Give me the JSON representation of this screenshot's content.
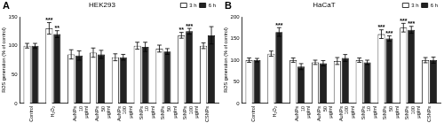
{
  "chart_data": [
    {
      "panel": "A",
      "type": "bar",
      "title": "HEK293",
      "categories": [
        "Control",
        "H₂O₂",
        "AuNPs 10 μg/ml",
        "AuNPs 50 μg/ml",
        "AuNPs 100 μg/ml",
        "SiNPs 10 μg/ml",
        "SiNPs 50 μg/ml",
        "SiNPs 100 μg/ml",
        "CSNPs"
      ],
      "series": [
        {
          "name": "3 h",
          "color": "#ffffff",
          "values": [
            100,
            130,
            85,
            88,
            80,
            100,
            95,
            118,
            100
          ],
          "errors": [
            4,
            10,
            8,
            8,
            6,
            6,
            6,
            5,
            5
          ],
          "significance": [
            null,
            "***",
            null,
            null,
            null,
            null,
            null,
            "**",
            null
          ]
        },
        {
          "name": "6 h",
          "color": "#222222",
          "values": [
            100,
            120,
            83,
            85,
            80,
            98,
            90,
            125,
            118
          ],
          "errors": [
            4,
            6,
            8,
            7,
            5,
            8,
            5,
            5,
            15
          ],
          "significance": [
            null,
            "**",
            null,
            null,
            null,
            null,
            null,
            "***",
            null
          ]
        }
      ],
      "ylabel": "ROS generation (% of control)",
      "ylim": [
        0,
        150
      ],
      "yticks": [
        0,
        50,
        100,
        150
      ],
      "grid": false,
      "legend": "top-right"
    },
    {
      "panel": "B",
      "type": "bar",
      "title": "HaCaT",
      "categories": [
        "Control",
        "H₂O₂",
        "AuNPs 10 μg/ml",
        "AuNPs 50 μg/ml",
        "AuNPs 100 μg/ml",
        "SiNPs 10 μg/ml",
        "SiNPs 50 μg/ml",
        "SiNPs 100 μg/ml",
        "CSNPs"
      ],
      "series": [
        {
          "name": "3 h",
          "color": "#ffffff",
          "values": [
            100,
            115,
            100,
            95,
            98,
            100,
            160,
            175,
            100
          ],
          "errors": [
            5,
            6,
            5,
            5,
            8,
            5,
            10,
            10,
            6
          ],
          "significance": [
            null,
            null,
            null,
            null,
            null,
            null,
            "***",
            "***",
            null
          ]
        },
        {
          "name": "6 h",
          "color": "#222222",
          "values": [
            100,
            165,
            85,
            93,
            105,
            95,
            150,
            170,
            100
          ],
          "errors": [
            4,
            10,
            7,
            6,
            8,
            5,
            6,
            8,
            7
          ],
          "significance": [
            null,
            "***",
            null,
            null,
            null,
            null,
            "***",
            "***",
            null
          ]
        }
      ],
      "ylabel": "ROS generation (% of control)",
      "ylim": [
        0,
        200
      ],
      "yticks": [
        0,
        50,
        100,
        150,
        200
      ],
      "grid": false,
      "legend": "top-right"
    }
  ]
}
